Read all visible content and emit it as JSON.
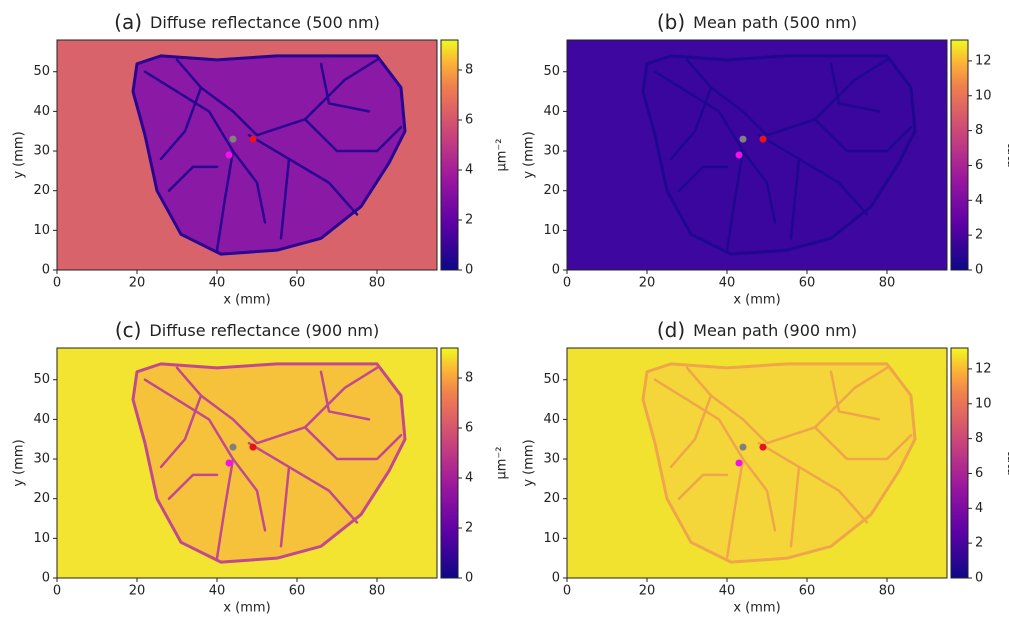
{
  "chart_data": [
    {
      "type": "heatmap",
      "panel": "(a)",
      "title": "Diffuse reflectance (500 nm)",
      "x_label": "x (mm)",
      "y_label": "y (mm)",
      "xlim": [
        0,
        95
      ],
      "xticks": [
        0,
        20,
        40,
        60,
        80
      ],
      "ylim": [
        0,
        58
      ],
      "yticks": [
        0,
        10,
        20,
        30,
        40,
        50
      ],
      "clim": [
        0,
        9.2
      ],
      "cticks": [
        0,
        2,
        4,
        6,
        8
      ],
      "colorbar_label": "μm⁻²",
      "background_color": "#d9636b",
      "tissue_color": "#8a1aa5",
      "vessel_color": "#2a0592",
      "points": {
        "x": [
          44,
          49,
          43
        ],
        "y": [
          33,
          33,
          29
        ],
        "colors": [
          "#808080",
          "#e8141c",
          "#f012e8"
        ]
      }
    },
    {
      "type": "heatmap",
      "panel": "(b)",
      "title": "Mean path (500 nm)",
      "x_label": "x (mm)",
      "y_label": "y (mm)",
      "xlim": [
        0,
        95
      ],
      "xticks": [
        0,
        20,
        40,
        60,
        80
      ],
      "ylim": [
        0,
        58
      ],
      "yticks": [
        0,
        10,
        20,
        30,
        40,
        50
      ],
      "clim": [
        0,
        13.2
      ],
      "cticks": [
        0,
        2,
        4,
        6,
        8,
        10,
        12
      ],
      "colorbar_label": "mm",
      "background_color": "#3e079f",
      "tissue_color": "#3a069e",
      "vessel_color": "#1f0891",
      "points": {
        "x": [
          44,
          49,
          43
        ],
        "y": [
          33,
          33,
          29
        ],
        "colors": [
          "#808080",
          "#e8141c",
          "#f012e8"
        ]
      }
    },
    {
      "type": "heatmap",
      "panel": "(c)",
      "title": "Diffuse reflectance (900 nm)",
      "x_label": "x (mm)",
      "y_label": "y (mm)",
      "xlim": [
        0,
        95
      ],
      "xticks": [
        0,
        20,
        40,
        60,
        80
      ],
      "ylim": [
        0,
        58
      ],
      "yticks": [
        0,
        10,
        20,
        30,
        40,
        50
      ],
      "clim": [
        0,
        9.2
      ],
      "cticks": [
        0,
        2,
        4,
        6,
        8
      ],
      "colorbar_label": "μm⁻²",
      "background_color": "#f3e431",
      "tissue_color": "#f6c23c",
      "vessel_color": "#c24a8c",
      "points": {
        "x": [
          44,
          49,
          43
        ],
        "y": [
          33,
          33,
          29
        ],
        "colors": [
          "#808080",
          "#e8141c",
          "#f012e8"
        ]
      }
    },
    {
      "type": "heatmap",
      "panel": "(d)",
      "title": "Mean path (900 nm)",
      "x_label": "x (mm)",
      "y_label": "y (mm)",
      "xlim": [
        0,
        95
      ],
      "xticks": [
        0,
        20,
        40,
        60,
        80
      ],
      "ylim": [
        0,
        58
      ],
      "yticks": [
        0,
        10,
        20,
        30,
        40,
        50
      ],
      "clim": [
        0,
        13.2
      ],
      "cticks": [
        0,
        2,
        4,
        6,
        8,
        10,
        12
      ],
      "colorbar_label": "mm",
      "background_color": "#f2e230",
      "tissue_color": "#f5d63a",
      "vessel_color": "#efa64a",
      "points": {
        "x": [
          44,
          49,
          43
        ],
        "y": [
          33,
          33,
          29
        ],
        "colors": [
          "#808080",
          "#e8141c",
          "#f012e8"
        ]
      }
    }
  ]
}
